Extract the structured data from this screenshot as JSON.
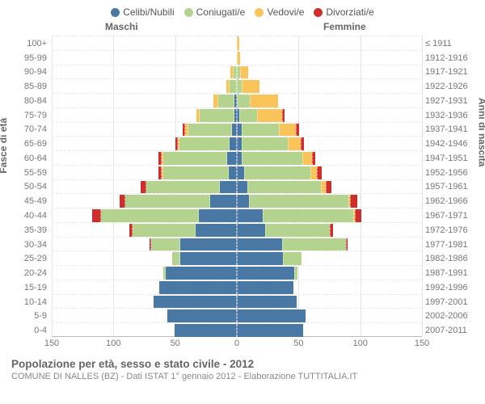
{
  "colors": {
    "single": "#4a78a4",
    "married": "#b4d38e",
    "widowed": "#f9c55b",
    "divorced": "#cf2f2c",
    "grid": "#e4e4e4",
    "center": "#b9c2cc"
  },
  "legend": [
    {
      "key": "single",
      "label": "Celibi/Nubili"
    },
    {
      "key": "married",
      "label": "Coniugati/e"
    },
    {
      "key": "widowed",
      "label": "Vedovi/e"
    },
    {
      "key": "divorced",
      "label": "Divorziati/e"
    }
  ],
  "headers": {
    "male": "Maschi",
    "female": "Femmine"
  },
  "axis_titles": {
    "left": "Fasce di età",
    "right": "Anni di nascita"
  },
  "x_ticks": [
    -150,
    -100,
    -50,
    0,
    50,
    100,
    150
  ],
  "x_max": 150,
  "rows": [
    {
      "age": "100+",
      "birth": "≤ 1911",
      "m": [
        0,
        0,
        0,
        0
      ],
      "f": [
        0,
        0,
        1,
        0
      ]
    },
    {
      "age": "95-99",
      "birth": "1912-1916",
      "m": [
        0,
        0,
        0,
        0
      ],
      "f": [
        0,
        0,
        2,
        0
      ]
    },
    {
      "age": "90-94",
      "birth": "1917-1921",
      "m": [
        0,
        2,
        2,
        0
      ],
      "f": [
        0,
        2,
        6,
        0
      ]
    },
    {
      "age": "85-89",
      "birth": "1922-1926",
      "m": [
        0,
        5,
        2,
        0
      ],
      "f": [
        0,
        3,
        14,
        0
      ]
    },
    {
      "age": "80-84",
      "birth": "1927-1931",
      "m": [
        1,
        13,
        3,
        0
      ],
      "f": [
        0,
        10,
        22,
        0
      ]
    },
    {
      "age": "75-79",
      "birth": "1932-1936",
      "m": [
        1,
        28,
        2,
        0
      ],
      "f": [
        1,
        14,
        20,
        1
      ]
    },
    {
      "age": "70-74",
      "birth": "1937-1941",
      "m": [
        3,
        35,
        2,
        1
      ],
      "f": [
        3,
        30,
        13,
        2
      ]
    },
    {
      "age": "65-69",
      "birth": "1942-1946",
      "m": [
        5,
        40,
        1,
        1
      ],
      "f": [
        3,
        37,
        10,
        2
      ]
    },
    {
      "age": "60-64",
      "birth": "1947-1951",
      "m": [
        7,
        51,
        1,
        2
      ],
      "f": [
        3,
        49,
        7,
        2
      ]
    },
    {
      "age": "55-59",
      "birth": "1952-1956",
      "m": [
        6,
        52,
        1,
        2
      ],
      "f": [
        5,
        53,
        5,
        3
      ]
    },
    {
      "age": "50-54",
      "birth": "1957-1961",
      "m": [
        13,
        59,
        0,
        4
      ],
      "f": [
        8,
        59,
        3,
        4
      ]
    },
    {
      "age": "45-49",
      "birth": "1962-1966",
      "m": [
        21,
        68,
        0,
        4
      ],
      "f": [
        9,
        80,
        1,
        5
      ]
    },
    {
      "age": "40-44",
      "birth": "1967-1971",
      "m": [
        30,
        79,
        0,
        6
      ],
      "f": [
        20,
        73,
        1,
        4
      ]
    },
    {
      "age": "35-39",
      "birth": "1972-1976",
      "m": [
        33,
        50,
        0,
        2
      ],
      "f": [
        22,
        52,
        0,
        2
      ]
    },
    {
      "age": "30-34",
      "birth": "1977-1981",
      "m": [
        45,
        23,
        0,
        1
      ],
      "f": [
        36,
        51,
        0,
        1
      ]
    },
    {
      "age": "25-29",
      "birth": "1982-1986",
      "m": [
        45,
        6,
        0,
        0
      ],
      "f": [
        37,
        14,
        0,
        0
      ]
    },
    {
      "age": "20-24",
      "birth": "1987-1991",
      "m": [
        57,
        1,
        0,
        0
      ],
      "f": [
        46,
        2,
        0,
        0
      ]
    },
    {
      "age": "15-19",
      "birth": "1992-1996",
      "m": [
        62,
        0,
        0,
        0
      ],
      "f": [
        45,
        0,
        0,
        0
      ]
    },
    {
      "age": "10-14",
      "birth": "1997-2001",
      "m": [
        67,
        0,
        0,
        0
      ],
      "f": [
        48,
        0,
        0,
        0
      ]
    },
    {
      "age": "5-9",
      "birth": "2002-2006",
      "m": [
        56,
        0,
        0,
        0
      ],
      "f": [
        55,
        0,
        0,
        0
      ]
    },
    {
      "age": "0-4",
      "birth": "2007-2011",
      "m": [
        50,
        0,
        0,
        0
      ],
      "f": [
        53,
        0,
        0,
        0
      ]
    }
  ],
  "footer": {
    "title": "Popolazione per età, sesso e stato civile - 2012",
    "subtitle": "COMUNE DI NALLES (BZ) - Dati ISTAT 1° gennaio 2012 - Elaborazione TUTTITALIA.IT"
  }
}
